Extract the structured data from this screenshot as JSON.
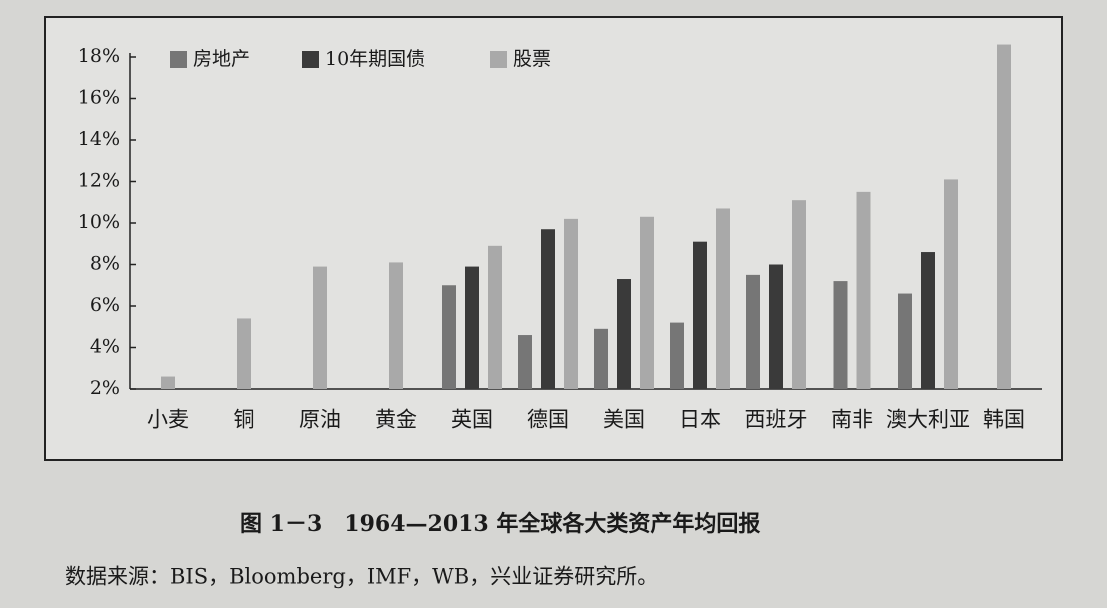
{
  "chart_data": {
    "type": "bar",
    "categories": [
      "小麦",
      "铜",
      "原油",
      "黄金",
      "英国",
      "德国",
      "美国",
      "日本",
      "西班牙",
      "南非",
      "澳大利亚",
      "韩国"
    ],
    "series": [
      {
        "name": "房地产",
        "color": "#767676",
        "values": [
          null,
          null,
          null,
          null,
          7.0,
          4.6,
          4.9,
          5.2,
          7.5,
          7.2,
          6.6,
          null
        ]
      },
      {
        "name": "10年期国债",
        "color": "#3a3a3a",
        "values": [
          null,
          null,
          null,
          null,
          7.9,
          9.7,
          7.3,
          9.1,
          8.0,
          null,
          8.6,
          null
        ]
      },
      {
        "name": "股票",
        "color": "#a9a9a9",
        "values": [
          2.6,
          5.4,
          7.9,
          8.1,
          8.9,
          10.2,
          10.3,
          10.7,
          11.1,
          11.5,
          12.1,
          18.6
        ]
      }
    ],
    "ylim": [
      2,
      18
    ],
    "yticks": [
      {
        "value": 2,
        "label": "2%"
      },
      {
        "value": 4,
        "label": "4%"
      },
      {
        "value": 6,
        "label": "6%"
      },
      {
        "value": 8,
        "label": "8%"
      },
      {
        "value": 10,
        "label": "10%"
      },
      {
        "value": 12,
        "label": "12%"
      },
      {
        "value": 14,
        "label": "14%"
      },
      {
        "value": 16,
        "label": "16%"
      },
      {
        "value": 18,
        "label": "18%"
      }
    ],
    "caption": "图 1－3　1964—2013 年全球各大类资产年均回报",
    "source": "数据来源：BIS，Bloomberg，IMF，WB，兴业证券研究所。"
  }
}
